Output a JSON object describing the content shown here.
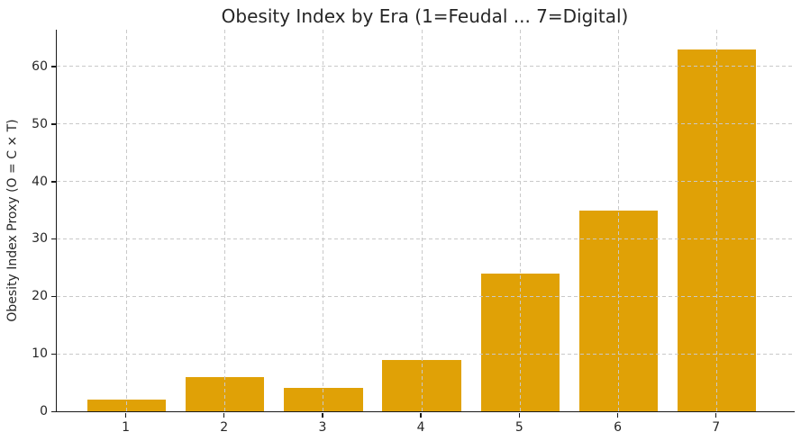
{
  "chart_data": {
    "type": "bar",
    "title": "Obesity Index by Era (1=Feudal ... 7=Digital)",
    "xlabel": "",
    "ylabel": "Obesity Index Proxy (O = C × T)",
    "categories": [
      1,
      2,
      3,
      4,
      5,
      6,
      7
    ],
    "values": [
      2,
      6,
      4,
      9,
      24,
      35,
      63
    ],
    "yticks": [
      0,
      10,
      20,
      30,
      40,
      50,
      60
    ],
    "xlim": [
      0.29,
      7.79
    ],
    "ylim": [
      0,
      66.4
    ],
    "bar_width": 0.8,
    "bar_color": "#e0a106",
    "grid": {
      "visible": true,
      "style": "dashed",
      "color": "#c9c9c9",
      "drawn_over_bars": true
    },
    "axis_color": "#1a1a1a",
    "text_color": "#262626",
    "background_color": "#ffffff",
    "legend": "none"
  }
}
